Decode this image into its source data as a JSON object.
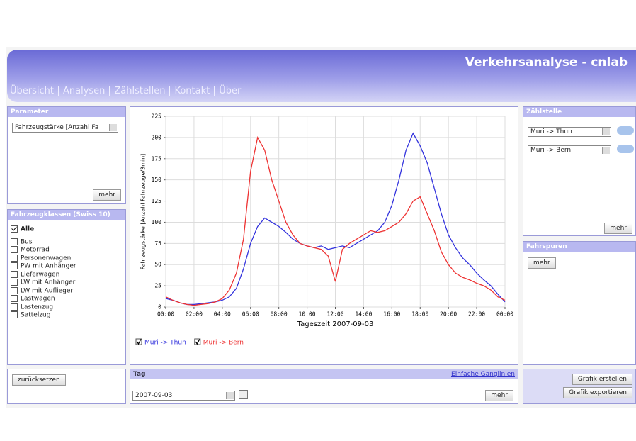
{
  "header": {
    "title": "Verkehrsanalyse - cnlab",
    "nav": [
      "Übersicht",
      "Analysen",
      "Zählstellen",
      "Kontakt",
      "Über"
    ]
  },
  "parameter": {
    "title": "Parameter",
    "select": "Fahrzeugstärke [Anzahl Fa",
    "button": "mehr"
  },
  "classes": {
    "title": "Fahrzeugklassen (Swiss 10)",
    "items": [
      {
        "label": "Alle",
        "checked": true
      },
      {
        "label": "Bus",
        "checked": false
      },
      {
        "label": "Motorrad",
        "checked": false
      },
      {
        "label": "Personenwagen",
        "checked": false
      },
      {
        "label": "PW mit Anhänger",
        "checked": false
      },
      {
        "label": "Lieferwagen",
        "checked": false
      },
      {
        "label": "LW mit Anhänger",
        "checked": false
      },
      {
        "label": "LW mit Auflieger",
        "checked": false
      },
      {
        "label": "Lastwagen",
        "checked": false
      },
      {
        "label": "Lastenzug",
        "checked": false
      },
      {
        "label": "Sattelzug",
        "checked": false
      }
    ]
  },
  "reset": "zurücksetzen",
  "counter": {
    "title": "Zählstelle",
    "selects": [
      "Muri -> Thun",
      "Muri -> Bern"
    ],
    "button": "mehr"
  },
  "lanes": {
    "title": "Fahrspuren",
    "button": "mehr"
  },
  "day": {
    "title": "Tag",
    "link": "Einfache Ganglinien",
    "date": "2007-09-03",
    "button": "mehr"
  },
  "actions": [
    "Grafik erstellen",
    "Grafik exportieren"
  ],
  "chart_data": {
    "type": "line",
    "xlabel": "Tageszeit 2007-09-03",
    "ylabel": "Fahrzeugstärke [Anzahl Fahrzeuge/3min]",
    "x": [
      0,
      0.5,
      1,
      1.5,
      2,
      2.5,
      3,
      3.5,
      4,
      4.5,
      5,
      5.5,
      6,
      6.5,
      7,
      7.5,
      8,
      8.5,
      9,
      9.5,
      10,
      10.5,
      11,
      11.5,
      12,
      12.5,
      13,
      13.5,
      14,
      14.5,
      15,
      15.5,
      16,
      16.5,
      17,
      17.5,
      18,
      18.5,
      19,
      19.5,
      20,
      20.5,
      21,
      21.5,
      22,
      22.5,
      23,
      23.5,
      24
    ],
    "xlim": [
      0,
      24
    ],
    "xticks": [
      {
        "value": 0,
        "label": "00:00"
      },
      {
        "value": 2,
        "label": "02:00"
      },
      {
        "value": 4,
        "label": "04:00"
      },
      {
        "value": 6,
        "label": "06:00"
      },
      {
        "value": 8,
        "label": "08:00"
      },
      {
        "value": 10,
        "label": "10:00"
      },
      {
        "value": 12,
        "label": "12:00"
      },
      {
        "value": 14,
        "label": "14:00"
      },
      {
        "value": 16,
        "label": "16:00"
      },
      {
        "value": 18,
        "label": "18:00"
      },
      {
        "value": 20,
        "label": "20:00"
      },
      {
        "value": 22,
        "label": "22:00"
      },
      {
        "value": 24,
        "label": "00:00"
      }
    ],
    "ylim": [
      0,
      225
    ],
    "yticks": [
      0,
      25,
      50,
      75,
      100,
      125,
      150,
      175,
      200,
      225
    ],
    "grid": true,
    "series": [
      {
        "name": "Muri -> Thun",
        "color": "#3333dd",
        "checked": true,
        "values": [
          10,
          8,
          5,
          3,
          3,
          4,
          5,
          6,
          8,
          12,
          22,
          45,
          75,
          95,
          105,
          100,
          95,
          88,
          80,
          75,
          72,
          70,
          72,
          68,
          70,
          72,
          70,
          75,
          80,
          85,
          90,
          100,
          120,
          150,
          185,
          205,
          190,
          170,
          140,
          110,
          85,
          70,
          58,
          50,
          40,
          32,
          25,
          15,
          6
        ]
      },
      {
        "name": "Muri -> Bern",
        "color": "#ee3333",
        "checked": true,
        "values": [
          12,
          8,
          5,
          3,
          2,
          3,
          4,
          6,
          10,
          20,
          40,
          80,
          160,
          200,
          185,
          150,
          125,
          100,
          85,
          75,
          72,
          70,
          68,
          60,
          30,
          68,
          75,
          80,
          85,
          90,
          88,
          90,
          95,
          100,
          110,
          125,
          130,
          110,
          90,
          65,
          50,
          40,
          35,
          32,
          28,
          25,
          20,
          12,
          8
        ]
      }
    ]
  }
}
